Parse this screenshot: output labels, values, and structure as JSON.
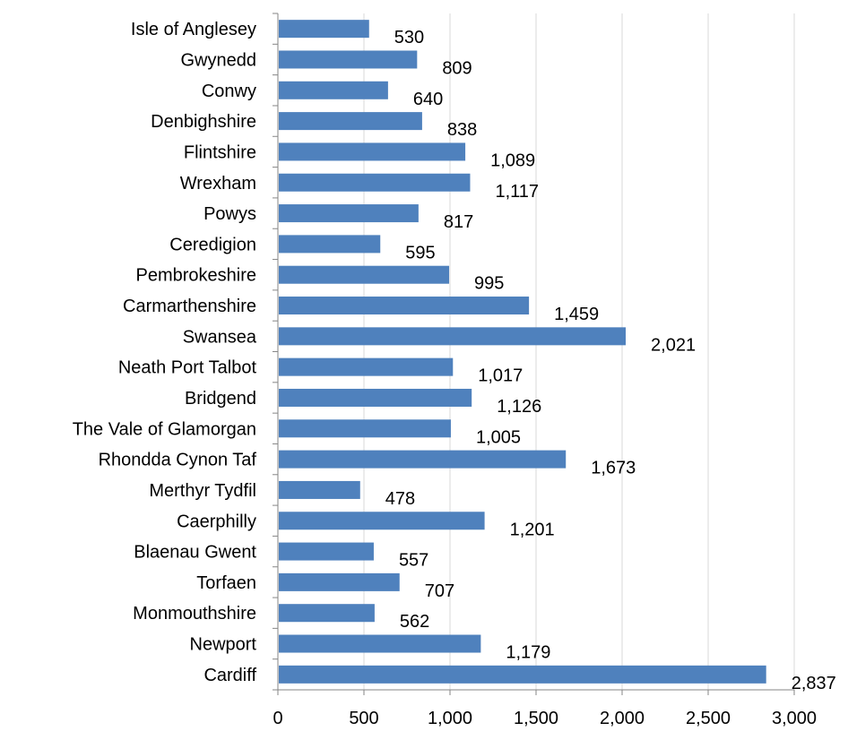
{
  "chart_data": {
    "type": "bar",
    "orientation": "horizontal",
    "title": "",
    "xlabel": "",
    "ylabel": "",
    "categories": [
      "Isle of Anglesey",
      "Gwynedd",
      "Conwy",
      "Denbighshire",
      "Flintshire",
      "Wrexham",
      "Powys",
      "Ceredigion",
      "Pembrokeshire",
      "Carmarthenshire",
      "Swansea",
      "Neath Port Talbot",
      "Bridgend",
      "The Vale of Glamorgan",
      "Rhondda Cynon Taf",
      "Merthyr Tydfil",
      "Caerphilly",
      "Blaenau Gwent",
      "Torfaen",
      "Monmouthshire",
      "Newport",
      "Cardiff"
    ],
    "values": [
      530,
      809,
      640,
      838,
      1089,
      1117,
      817,
      595,
      995,
      1459,
      2021,
      1017,
      1126,
      1005,
      1673,
      478,
      1201,
      557,
      707,
      562,
      1179,
      2837
    ],
    "value_labels": [
      "530",
      "809",
      "640",
      "838",
      "1,089",
      "1,117",
      "817",
      "595",
      "995",
      "1,459",
      "2,021",
      "1,017",
      "1,126",
      "1,005",
      "1,673",
      "478",
      "1,201",
      "557",
      "707",
      "562",
      "1,179",
      "2,837"
    ],
    "xlim": [
      0,
      3000
    ],
    "xticks": [
      0,
      500,
      1000,
      1500,
      2000,
      2500,
      3000
    ],
    "xtick_labels": [
      "0",
      "500",
      "1,000",
      "1,500",
      "2,000",
      "2,500",
      "3,000"
    ],
    "grid": "vertical",
    "legend": "none",
    "bar_color": "#4F81BD",
    "grid_color": "#D9D9D9",
    "axis_color": "#868686"
  }
}
